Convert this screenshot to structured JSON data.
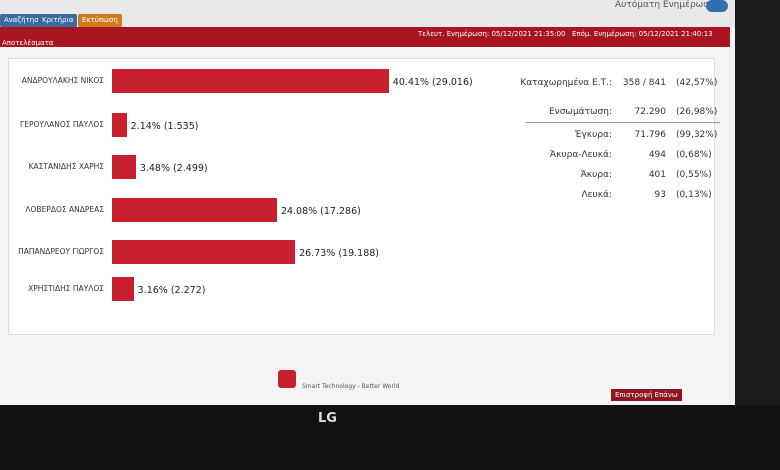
{
  "header": {
    "auto_update": "Αυτόματη Ενημέρωση",
    "buttons": [
      "Αναζήτηση",
      "Κριτήρια",
      "Εκτύπωση"
    ]
  },
  "status_bar": {
    "title": "Αποτελέσματα",
    "last_update": "Τελευτ. Ενημέρωση: 05/12/2021 21:35:00",
    "next_update": "Επόμ. Ενημέρωση: 05/12/2021 21:40:13"
  },
  "chart_data": {
    "type": "bar",
    "orientation": "horizontal",
    "color": "#c9202f",
    "categories": [
      "ΑΝΔΡΟΥΛΑΚΗΣ ΝΙΚΟΣ",
      "ΓΕΡΟΥΛΑΝΟΣ ΠΑΥΛΟΣ",
      "ΚΑΣΤΑΝΙΔΗΣ ΧΑΡΗΣ",
      "ΛΟΒΕΡΔΟΣ ΑΝΔΡΕΑΣ",
      "ΠΑΠΑΝΔΡΕΟΥ ΓΙΩΡΓΟΣ",
      "ΧΡΗΣΤΙΔΗΣ ΠΑΥΛΟΣ"
    ],
    "values": [
      40.41,
      2.14,
      3.48,
      24.08,
      26.73,
      3.16
    ],
    "value_labels": [
      "40.41% (29.016)",
      "2.14% (1.535)",
      "3.48% (2.499)",
      "24.08% (17.286)",
      "26.73% (19.188)",
      "3.16% (2.272)"
    ]
  },
  "stats": {
    "rows": [
      [
        "Καταχωρημένα Ε.Τ.:",
        "358 / 841",
        "(42,57%)"
      ],
      [
        "Ενσωμάτωση:",
        "72.290",
        "(26,98%)"
      ],
      [
        "Έγκυρα:",
        "71.796",
        "(99,32%)"
      ],
      [
        "Άκυρα-Λευκά:",
        "494",
        "(0,68%)"
      ],
      [
        "Άκυρα:",
        "401",
        "(0,55%)"
      ],
      [
        "Λευκά:",
        "93",
        "(0,13%)"
      ]
    ]
  },
  "footer": {
    "slogan": "Smart Technology - Better World",
    "back_to_top": "Επιστροφή Επάνω"
  },
  "monitor": {
    "brand": "LG"
  }
}
